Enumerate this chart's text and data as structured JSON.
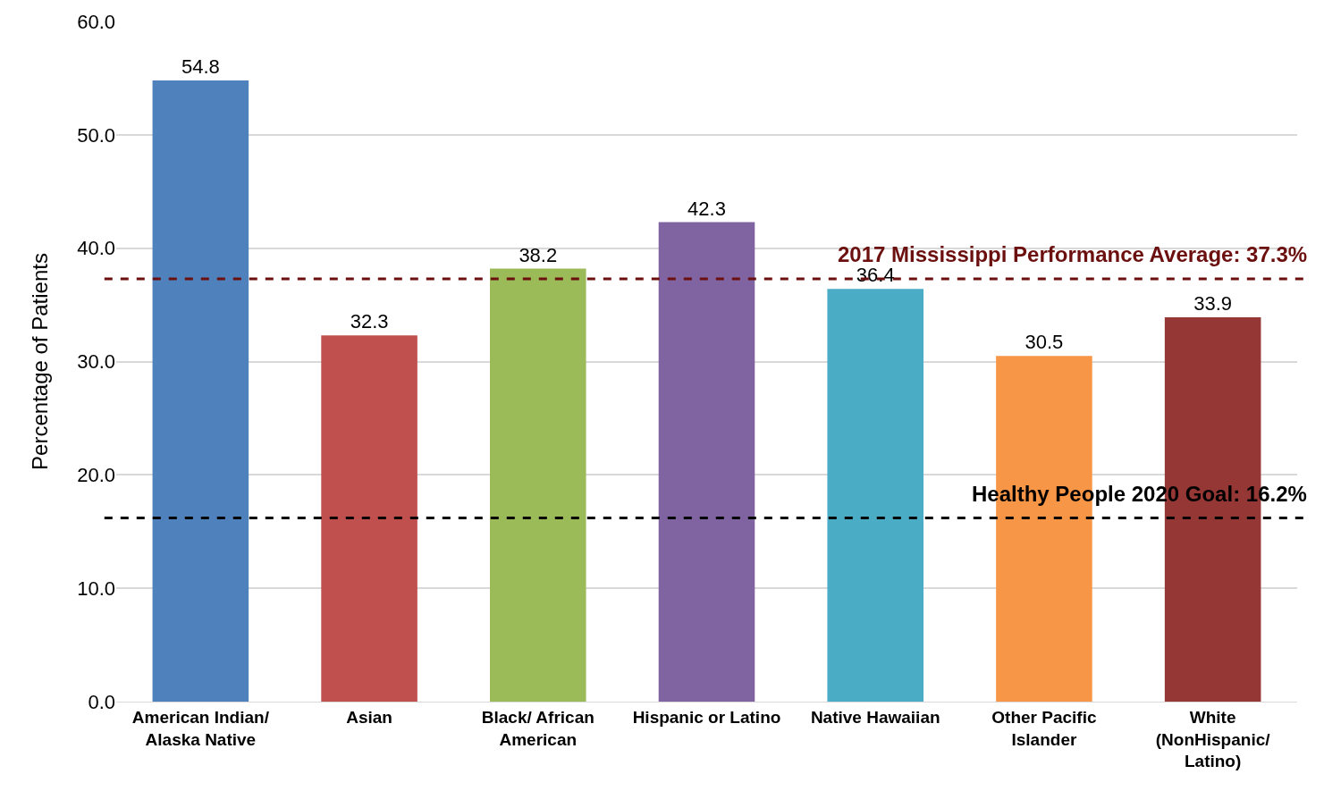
{
  "chart_data": {
    "type": "bar",
    "ylabel": "Percentage of Patients",
    "categories": [
      "American Indian/\nAlaska Native",
      "Asian",
      "Black/ African\nAmerican",
      "Hispanic or Latino",
      "Native Hawaiian",
      "Other Pacific\nIslander",
      "White\n(NonHispanic/\nLatino)"
    ],
    "values": [
      54.8,
      32.3,
      38.2,
      42.3,
      36.4,
      30.5,
      33.9
    ],
    "colors": [
      "#4f81bd",
      "#c0504d",
      "#9bbb59",
      "#8064a2",
      "#4bacc6",
      "#f79646",
      "#953735"
    ],
    "ylim": [
      0,
      60
    ],
    "yticks": [
      {
        "value": 0,
        "label": "0.0"
      },
      {
        "value": 10,
        "label": "10.0"
      },
      {
        "value": 20,
        "label": "20.0"
      },
      {
        "value": 30,
        "label": "30.0"
      },
      {
        "value": 40,
        "label": "40.0"
      },
      {
        "value": 50,
        "label": "50.0"
      },
      {
        "value": 60,
        "label": "60.0"
      }
    ],
    "grid": "y",
    "data_labels": true,
    "ref_lines": [
      {
        "axis": "y",
        "value": 37.3,
        "label": "2017 Mississippi Performance Average: 37.3%",
        "color": "#6b0f0f",
        "line_style": "dashed"
      },
      {
        "axis": "y",
        "value": 16.2,
        "label": "Healthy People 2020 Goal: 16.2%",
        "color": "#000000",
        "line_style": "dashed"
      }
    ]
  }
}
